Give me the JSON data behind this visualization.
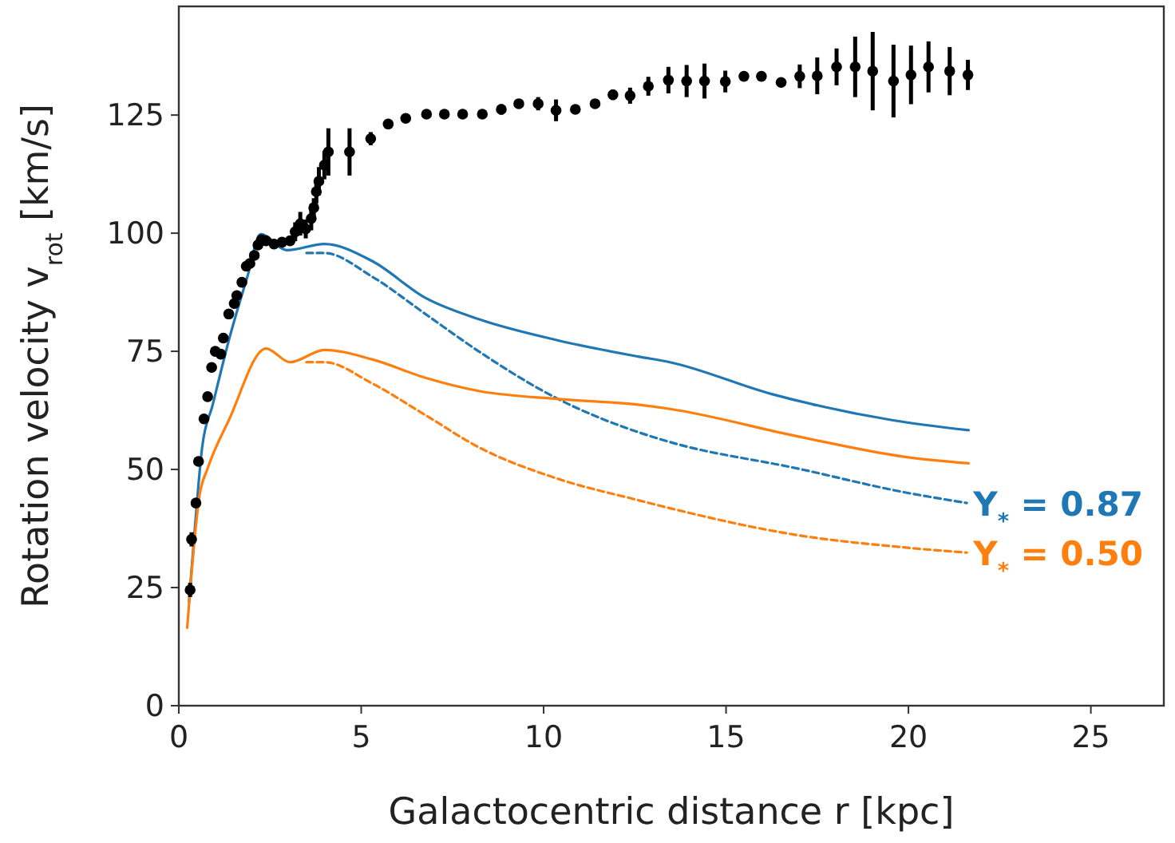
{
  "chart_data": {
    "type": "line",
    "xlabel": "Galactocentric distance r [kpc]",
    "ylabel": "Rotation velocity v$_{rot}$ [km/s]",
    "xlim": [
      0,
      27
    ],
    "ylim": [
      0,
      148
    ],
    "xticks": [
      0,
      5,
      10,
      15,
      20,
      25
    ],
    "yticks": [
      0,
      25,
      50,
      75,
      100,
      125
    ],
    "grid": false,
    "series": [
      {
        "color": "#1f77b4",
        "line_style": "solid",
        "x": [
          0.28,
          0.42,
          0.64,
          0.93,
          1.37,
          1.88,
          2.24,
          2.97,
          3.99,
          5.3,
          6.76,
          8.22,
          10.4,
          12.59,
          13.46,
          16.23,
          19.58,
          21.65
        ],
        "values": [
          22,
          35.6,
          54.7,
          63.7,
          77.3,
          90.8,
          99.8,
          96.4,
          97.7,
          94.1,
          86.3,
          81.8,
          77.3,
          73.9,
          72.7,
          66,
          60.4,
          58.3
        ]
      },
      {
        "name": "Υ$_{*}$ = 0.87",
        "color": "#1f77b4",
        "line_style": "dashed",
        "x": [
          3.5,
          3.99,
          5.3,
          6.76,
          8.22,
          10.4,
          12.59,
          13.46,
          16.96,
          19.87,
          21.6
        ],
        "values": [
          95.8,
          95.8,
          90.8,
          82.9,
          75,
          64.9,
          57.9,
          55.8,
          50.2,
          45.2,
          42.9
        ]
      },
      {
        "color": "#ff7f0e",
        "line_style": "solid",
        "x": [
          0.23,
          0.57,
          0.79,
          1.37,
          2.39,
          3.05,
          3.99,
          5.3,
          6.76,
          8.22,
          10.4,
          12.59,
          13.46,
          16.96,
          19.87,
          21.65
        ],
        "values": [
          16.5,
          44.6,
          50.2,
          60.4,
          75.6,
          72.7,
          75.3,
          73.3,
          69.4,
          66.6,
          64.9,
          63.7,
          62.8,
          57,
          52.7,
          51.3
        ]
      },
      {
        "name": "Υ$_{*}$ = 0.50",
        "color": "#ff7f0e",
        "line_style": "dashed",
        "x": [
          3.5,
          3.99,
          5.3,
          6.76,
          8.22,
          10.4,
          12.59,
          13.46,
          16.96,
          19.87,
          21.6
        ],
        "values": [
          72.7,
          72.7,
          68.2,
          61.5,
          54.7,
          48,
          43.5,
          41.8,
          36.1,
          33.5,
          32.4
        ]
      },
      {
        "type": "scatter",
        "color": "#000000",
        "marker": "circle",
        "x": [
          0.31,
          0.35,
          0.47,
          0.54,
          0.69,
          0.79,
          0.9,
          1.0,
          1.15,
          1.22,
          1.37,
          1.52,
          1.59,
          1.73,
          1.85,
          1.95,
          2.07,
          2.17,
          2.27,
          2.39,
          2.61,
          2.83,
          3.05,
          3.19,
          3.33,
          3.48,
          3.63,
          3.7,
          3.77,
          3.84,
          3.99,
          4.1,
          4.68,
          5.26,
          5.74,
          6.22,
          6.79,
          7.28,
          7.78,
          8.32,
          8.84,
          9.32,
          9.85,
          10.34,
          10.87,
          11.41,
          11.9,
          12.37,
          12.87,
          13.42,
          13.92,
          14.41,
          14.98,
          15.49,
          15.97,
          16.51,
          17.02,
          17.5,
          18.03,
          18.54,
          19.02,
          19.59,
          20.07,
          20.55,
          21.13,
          21.63
        ],
        "values": [
          24.5,
          35.2,
          42.9,
          51.7,
          60.7,
          65.4,
          71.6,
          75,
          74.4,
          77.8,
          82.9,
          85.1,
          86.8,
          89.6,
          93,
          93.6,
          95.3,
          97.5,
          98.6,
          98.4,
          97.7,
          98.1,
          98.4,
          100.3,
          102,
          100.9,
          103.1,
          105.4,
          108.8,
          111,
          114.4,
          117.2,
          117.2,
          120,
          123.1,
          124.3,
          125.2,
          125.2,
          125.2,
          125.2,
          126.2,
          127.4,
          127.4,
          126,
          126.2,
          127.4,
          129.3,
          129.1,
          131.1,
          132.4,
          132.2,
          132.2,
          132.1,
          133.2,
          133.2,
          131.9,
          133.2,
          133.3,
          135.2,
          135.2,
          134.3,
          132.2,
          133.5,
          135.2,
          134.3,
          133.5
        ],
        "errors": [
          1.5,
          1.5,
          1,
          1,
          1,
          1,
          1,
          1,
          1,
          1,
          1,
          1,
          1,
          1,
          1,
          1,
          1,
          1,
          1,
          1,
          1,
          1,
          1,
          2,
          2.5,
          2,
          2.5,
          2,
          2.5,
          3,
          3,
          5,
          5,
          1.4,
          null,
          null,
          null,
          null,
          null,
          null,
          1.1,
          null,
          1.4,
          2.3,
          null,
          null,
          1.1,
          1.7,
          2,
          2.8,
          3.4,
          3.7,
          2.3,
          null,
          null,
          null,
          2.5,
          3.9,
          3.9,
          6.4,
          8.3,
          7.7,
          6.2,
          5.4,
          5.1,
          3.2
        ]
      }
    ]
  }
}
